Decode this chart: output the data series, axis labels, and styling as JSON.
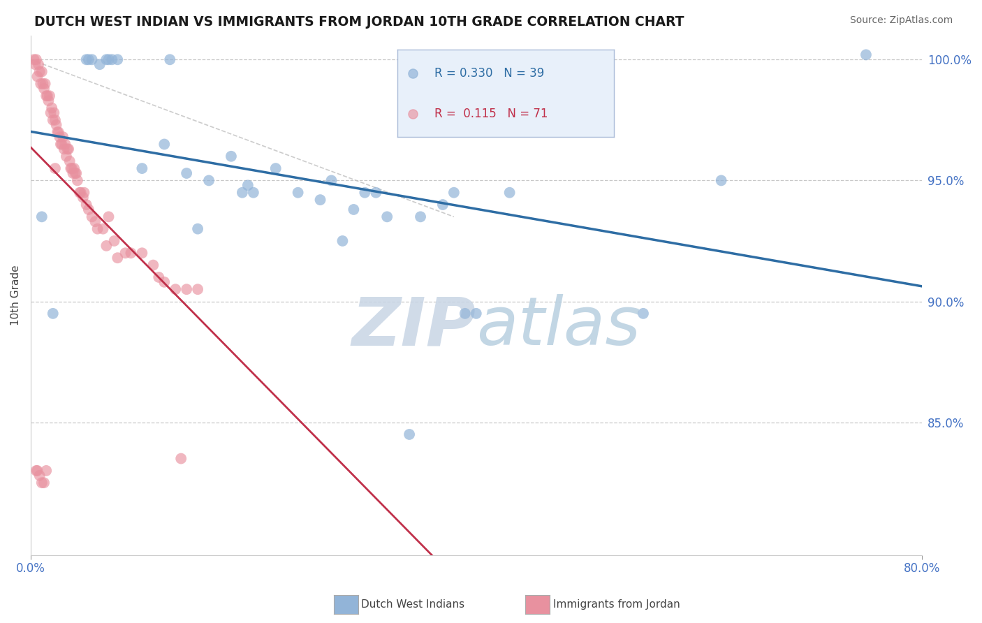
{
  "title": "DUTCH WEST INDIAN VS IMMIGRANTS FROM JORDAN 10TH GRADE CORRELATION CHART",
  "source": "Source: ZipAtlas.com",
  "ylabel": "10th Grade",
  "xmin": 0.0,
  "xmax": 80.0,
  "ymin": 79.5,
  "ymax": 101.0,
  "blue_R": 0.33,
  "blue_N": 39,
  "pink_R": 0.115,
  "pink_N": 71,
  "blue_color": "#92b4d8",
  "pink_color": "#e8919f",
  "blue_line_color": "#2e6da4",
  "pink_line_color": "#c0304a",
  "grid_color": "#bbbbbb",
  "tick_color": "#4472c4",
  "title_color": "#1a1a1a",
  "source_color": "#666666",
  "watermark_main_color": "#c5d5e8",
  "watermark_sub_color": "#c8d8ea",
  "legend_bg": "#e8f0fa",
  "legend_edge": "#aabbd8",
  "ytick_labels": [
    "85.0%",
    "90.0%",
    "95.0%",
    "100.0%"
  ],
  "ytick_values": [
    85.0,
    90.0,
    95.0,
    100.0
  ],
  "grid_values": [
    85.0,
    90.0,
    95.0,
    100.0
  ],
  "blue_scatter_x": [
    1.0,
    2.0,
    5.5,
    6.2,
    6.8,
    7.0,
    7.3,
    7.8,
    10.0,
    12.0,
    14.0,
    16.0,
    18.0,
    19.5,
    20.0,
    22.0,
    24.0,
    26.0,
    27.0,
    29.0,
    30.0,
    31.0,
    32.0,
    35.0,
    37.0,
    38.0,
    39.0,
    40.0,
    43.0,
    55.0,
    62.0,
    75.0,
    5.0,
    5.2,
    12.5,
    15.0,
    19.0,
    28.0,
    34.0
  ],
  "blue_scatter_y": [
    93.5,
    89.5,
    100.0,
    99.8,
    100.0,
    100.0,
    100.0,
    100.0,
    95.5,
    96.5,
    95.3,
    95.0,
    96.0,
    94.8,
    94.5,
    95.5,
    94.5,
    94.2,
    95.0,
    93.8,
    94.5,
    94.5,
    93.5,
    93.5,
    94.0,
    94.5,
    89.5,
    89.5,
    94.5,
    89.5,
    95.0,
    100.2,
    100.0,
    100.0,
    100.0,
    93.0,
    94.5,
    92.5,
    84.5
  ],
  "pink_scatter_x": [
    0.5,
    0.7,
    0.8,
    1.0,
    1.1,
    1.2,
    1.3,
    1.5,
    1.6,
    1.7,
    1.8,
    1.9,
    2.0,
    2.1,
    2.2,
    2.3,
    2.5,
    2.6,
    2.7,
    2.8,
    2.9,
    3.0,
    3.1,
    3.2,
    3.4,
    3.5,
    3.6,
    3.8,
    4.0,
    4.2,
    4.5,
    4.8,
    5.0,
    5.5,
    6.0,
    6.5,
    7.0,
    7.5,
    8.5,
    10.0,
    11.0,
    12.0,
    13.0,
    14.0,
    15.0,
    0.3,
    0.4,
    0.6,
    0.9,
    1.4,
    2.4,
    3.3,
    3.7,
    3.9,
    4.1,
    4.4,
    4.7,
    5.2,
    5.8,
    6.8,
    7.8,
    9.0,
    11.5,
    13.5,
    0.5,
    0.6,
    0.8,
    1.0,
    1.2,
    1.4,
    2.2
  ],
  "pink_scatter_y": [
    100.0,
    99.8,
    99.5,
    99.5,
    99.0,
    98.8,
    99.0,
    98.5,
    98.3,
    98.5,
    97.8,
    98.0,
    97.5,
    97.8,
    97.5,
    97.3,
    97.0,
    96.8,
    96.5,
    96.5,
    96.8,
    96.3,
    96.5,
    96.0,
    96.3,
    95.8,
    95.5,
    95.3,
    95.3,
    95.0,
    94.5,
    94.5,
    94.0,
    93.5,
    93.0,
    93.0,
    93.5,
    92.5,
    92.0,
    92.0,
    91.5,
    90.8,
    90.5,
    90.5,
    90.5,
    100.0,
    99.8,
    99.3,
    99.0,
    98.5,
    97.0,
    96.3,
    95.5,
    95.5,
    95.3,
    94.5,
    94.3,
    93.8,
    93.3,
    92.3,
    91.8,
    92.0,
    91.0,
    83.5,
    83.0,
    83.0,
    82.8,
    82.5,
    82.5,
    83.0,
    95.5
  ],
  "ref_line_x": [
    0.0,
    38.0
  ],
  "ref_line_y": [
    100.0,
    93.5
  ]
}
